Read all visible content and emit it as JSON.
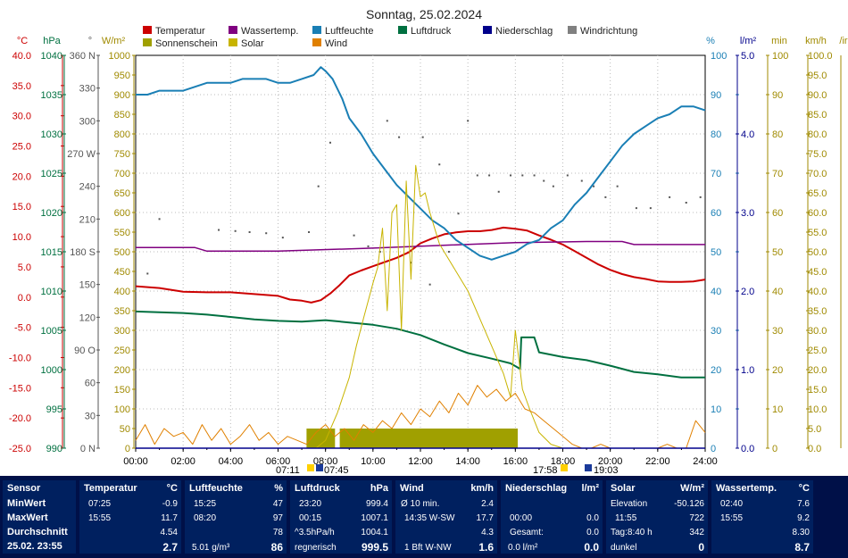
{
  "title": "Sonntag, 25.02.2024",
  "legend": [
    {
      "label": "Temperatur",
      "color": "#cc0000"
    },
    {
      "label": "Wassertemp.",
      "color": "#800080"
    },
    {
      "label": "Luftfeuchte",
      "color": "#1a7fb5"
    },
    {
      "label": "Luftdruck",
      "color": "#007040"
    },
    {
      "label": "Niederschlag",
      "color": "#00008b"
    },
    {
      "label": "Windrichtung",
      "color": "#808080"
    },
    {
      "label": "Sonnenschein",
      "color": "#a0a000"
    },
    {
      "label": "Solar",
      "color": "#c8b400"
    },
    {
      "label": "Wind",
      "color": "#e08000"
    }
  ],
  "axis_headers": {
    "temp": "°C",
    "press": "hPa",
    "dir": "°",
    "solar": "W/m²",
    "hum": "%",
    "rain": "l/m²",
    "sun": "min",
    "wind": "km/h",
    "extra": "/ir"
  },
  "sun_markers": {
    "sunrise": "07:11",
    "sunrise2": "07:45",
    "sunset": "17:58",
    "sunset2": "19:03"
  },
  "chart_data": {
    "type": "line",
    "x_label_ticks": [
      "00:00",
      "02:00",
      "04:00",
      "06:00",
      "08:00",
      "10:00",
      "12:00",
      "14:00",
      "16:00",
      "18:00",
      "20:00",
      "22:00",
      "24:00"
    ],
    "xlim": [
      0,
      24
    ],
    "axes": {
      "temp": {
        "ticks": [
          "40.0",
          "35.0",
          "30.0",
          "25.0",
          "20.0",
          "15.0",
          "10.0",
          "5.0",
          "0.0",
          "-5.0",
          "-10.0",
          "-15.0",
          "-20.0",
          "-25.0"
        ],
        "range": [
          -25,
          40
        ]
      },
      "press": {
        "ticks": [
          "1040",
          "1035",
          "1030",
          "1025",
          "1020",
          "1015",
          "1010",
          "1005",
          "1000",
          "995",
          "990"
        ],
        "range": [
          990,
          1040
        ]
      },
      "dir": {
        "ticks": [
          "360 N",
          "330",
          "300",
          "270 W",
          "240",
          "210",
          "180 S",
          "150",
          "120",
          "90 O",
          "60",
          "30",
          "0 N"
        ],
        "range": [
          0,
          360
        ]
      },
      "solar": {
        "ticks": [
          "1000",
          "950",
          "900",
          "850",
          "800",
          "750",
          "700",
          "650",
          "600",
          "550",
          "500",
          "450",
          "400",
          "350",
          "300",
          "250",
          "200",
          "150",
          "100",
          "50",
          "0"
        ],
        "range": [
          0,
          1000
        ]
      },
      "hum": {
        "ticks": [
          "100",
          "90",
          "80",
          "70",
          "60",
          "50",
          "40",
          "30",
          "20",
          "10",
          "0"
        ],
        "range": [
          0,
          100
        ]
      },
      "rain": {
        "ticks": [
          "5.0",
          "4.0",
          "3.0",
          "2.0",
          "1.0",
          "0.0"
        ],
        "range": [
          0,
          5
        ]
      },
      "sun": {
        "ticks": [
          "100",
          "90",
          "80",
          "70",
          "60",
          "50",
          "40",
          "30",
          "20",
          "10",
          "0"
        ],
        "range": [
          0,
          100
        ]
      },
      "wind": {
        "ticks": [
          "100.0",
          "95.0",
          "90.0",
          "85.0",
          "80.0",
          "75.0",
          "70.0",
          "65.0",
          "60.0",
          "55.0",
          "50.0",
          "45.0",
          "40.0",
          "35.0",
          "30.0",
          "25.0",
          "20.0",
          "15.0",
          "10.0",
          "5.0",
          "0.0"
        ],
        "range": [
          0,
          100
        ]
      }
    },
    "series": [
      {
        "name": "Temperatur",
        "axis": "temp",
        "x": [
          0,
          1,
          2,
          3,
          4,
          5,
          6,
          6.5,
          7,
          7.4,
          7.8,
          8.2,
          8.6,
          9,
          9.5,
          10,
          10.5,
          11,
          11.5,
          12,
          12.5,
          13,
          13.5,
          14,
          14.5,
          15,
          15.5,
          16,
          16.5,
          17,
          17.5,
          18,
          18.5,
          19,
          19.5,
          20,
          20.5,
          21,
          21.5,
          22,
          22.5,
          23,
          23.5,
          24
        ],
        "y": [
          1.8,
          1.5,
          0.9,
          0.8,
          0.8,
          0.5,
          0.2,
          -0.4,
          -0.6,
          -0.9,
          -0.5,
          0.6,
          2.0,
          3.6,
          4.4,
          5.1,
          5.8,
          6.5,
          7.4,
          8.9,
          9.7,
          10.4,
          10.7,
          10.9,
          10.9,
          11.1,
          11.5,
          11.3,
          11.0,
          10.2,
          9.5,
          8.7,
          7.6,
          6.5,
          5.4,
          4.5,
          3.8,
          3.3,
          3.0,
          2.6,
          2.5,
          2.5,
          2.6,
          2.9
        ]
      },
      {
        "name": "Wassertemp.",
        "axis": "temp",
        "x": [
          0,
          2.5,
          3.0,
          6.0,
          10.0,
          12.5,
          16.0,
          19.0,
          20.5,
          21.0,
          24.0
        ],
        "y": [
          8.2,
          8.2,
          7.6,
          7.6,
          8.1,
          8.5,
          9.0,
          9.2,
          9.2,
          8.7,
          8.7
        ]
      },
      {
        "name": "Luftfeuchte",
        "axis": "hum",
        "x": [
          0,
          0.5,
          1,
          1.5,
          2,
          2.5,
          3,
          3.5,
          4,
          4.5,
          5,
          5.5,
          6,
          6.5,
          7,
          7.5,
          7.8,
          8,
          8.3,
          8.7,
          9,
          9.5,
          10,
          10.5,
          11,
          11.5,
          12,
          12.5,
          13,
          13.5,
          14,
          14.5,
          15,
          15.5,
          16,
          16.5,
          17,
          17.5,
          18,
          18.5,
          19,
          19.5,
          20,
          20.5,
          21,
          21.5,
          22,
          22.5,
          23,
          23.5,
          24
        ],
        "y": [
          90,
          90,
          91,
          91,
          91,
          92,
          93,
          93,
          93,
          94,
          94,
          94,
          93,
          93,
          94,
          95,
          97,
          96,
          94,
          89,
          84,
          80,
          75,
          71,
          67,
          64,
          61,
          58,
          56,
          53,
          51,
          49,
          48,
          49,
          50,
          52,
          53,
          56,
          58,
          62,
          65,
          69,
          73,
          77,
          80,
          82,
          84,
          85,
          87,
          87,
          86
        ]
      },
      {
        "name": "Luftdruck",
        "axis": "press",
        "x": [
          0,
          1,
          2,
          3,
          4,
          5,
          6,
          7,
          8,
          9,
          10,
          11,
          12,
          13,
          14,
          15,
          15.8,
          16.2,
          16.25,
          16.8,
          17,
          18,
          19,
          20,
          21,
          22,
          23,
          24
        ],
        "y": [
          1007.4,
          1007.3,
          1007.2,
          1007.0,
          1006.7,
          1006.4,
          1006.2,
          1006.1,
          1006.3,
          1006.0,
          1005.7,
          1005.2,
          1004.4,
          1003.2,
          1002.1,
          1001.4,
          1000.8,
          1000.1,
          1004.1,
          1004.1,
          1002.2,
          1001.6,
          1001.2,
          1000.5,
          999.7,
          999.4,
          999.0,
          999.0
        ]
      },
      {
        "name": "Solar",
        "axis": "solar",
        "x": [
          7.6,
          8,
          8.5,
          9,
          9.3,
          9.6,
          10,
          10.2,
          10.4,
          10.6,
          10.8,
          11.0,
          11.2,
          11.4,
          11.6,
          11.8,
          12.0,
          12.2,
          12.4,
          12.6,
          12.8,
          13,
          13.5,
          14,
          14.5,
          15,
          15.5,
          15.8,
          16,
          16.3,
          16.6,
          17,
          17.5,
          18
        ],
        "y": [
          0,
          20,
          90,
          180,
          260,
          330,
          420,
          460,
          560,
          350,
          600,
          620,
          300,
          680,
          430,
          720,
          640,
          650,
          600,
          560,
          520,
          500,
          450,
          400,
          330,
          260,
          190,
          130,
          300,
          150,
          100,
          40,
          10,
          0
        ]
      },
      {
        "name": "Wind",
        "axis": "wind",
        "x": [
          0,
          0.4,
          0.8,
          1.2,
          1.6,
          2,
          2.4,
          2.8,
          3.2,
          3.6,
          4,
          4.4,
          4.8,
          5.2,
          5.6,
          6,
          6.4,
          6.8,
          7.2,
          7.6,
          8,
          8.4,
          8.8,
          9.2,
          9.6,
          10,
          10.4,
          10.8,
          11.2,
          11.6,
          12,
          12.4,
          12.8,
          13.2,
          13.6,
          14,
          14.4,
          14.8,
          15.2,
          15.6,
          16,
          16.4,
          16.8,
          17.2,
          17.6,
          18,
          18.4,
          18.8,
          19.2,
          19.6,
          20,
          20.4,
          20.8,
          21.2,
          21.6,
          22,
          22.4,
          22.8,
          23.2,
          23.6,
          24
        ],
        "y": [
          2,
          6,
          1,
          5,
          3,
          4,
          1,
          6,
          2,
          5,
          1,
          3,
          6,
          2,
          4,
          1,
          3,
          2,
          1,
          4,
          6,
          3,
          5,
          2,
          6,
          4,
          7,
          5,
          9,
          6,
          10,
          8,
          12,
          9,
          14,
          11,
          16,
          13,
          15,
          12,
          14,
          10,
          9,
          7,
          5,
          3,
          1,
          0,
          0,
          1,
          0,
          0,
          0,
          0,
          0,
          0,
          1,
          0,
          0,
          7,
          4
        ]
      },
      {
        "name": "Niederschlag",
        "axis": "rain",
        "x": [
          0,
          24
        ],
        "y": [
          0,
          0
        ]
      }
    ],
    "windrichtung": {
      "x": [
        0.5,
        1,
        3.5,
        4.2,
        4.8,
        5.5,
        6.2,
        7.3,
        7.7,
        8.2,
        9.2,
        9.8,
        10.3,
        10.6,
        11.1,
        11.6,
        12.1,
        12.4,
        12.8,
        13.2,
        13.6,
        14.0,
        14.4,
        14.9,
        15.3,
        15.8,
        16.3,
        16.8,
        17.2,
        17.6,
        18.2,
        18.8,
        19.3,
        19.8,
        20.3,
        21.1,
        21.7,
        22.5,
        23.2,
        23.8
      ],
      "y": [
        160,
        210,
        200,
        199,
        198,
        197,
        193,
        198,
        240,
        280,
        195,
        185,
        180,
        300,
        285,
        170,
        285,
        150,
        260,
        180,
        215,
        300,
        250,
        250,
        235,
        250,
        250,
        250,
        245,
        240,
        250,
        245,
        240,
        230,
        240,
        220,
        220,
        230,
        225,
        230
      ]
    },
    "sonnenschein": {
      "intervals": [
        [
          7.2,
          8.4
        ],
        [
          8.6,
          16.1
        ]
      ],
      "value_min": 10
    }
  },
  "stats": {
    "sensor": {
      "h1": "Sensor",
      "r1": "MinWert",
      "r2": "MaxWert",
      "r3": "Durchschnitt",
      "r4": "25.02. 23:55"
    },
    "temperatur": {
      "h1": "Temperatur",
      "unit": "°C",
      "r1t": "07:25",
      "r1v": "-0.9",
      "r2t": "15:55",
      "r2v": "11.7",
      "r3v": "4.54",
      "r4v": "2.7"
    },
    "luftfeuchte": {
      "h1": "Luftfeuchte",
      "unit": "%",
      "r1t": "15:25",
      "r1v": "47",
      "r2t": "08:20",
      "r2v": "97",
      "r3v": "78",
      "r4t": "5.01 g/m³",
      "r4v": "86"
    },
    "luftdruck": {
      "h1": "Luftdruck",
      "unit": "hPa",
      "r1t": "23:20",
      "r1v": "999.4",
      "r2t": "00:15",
      "r2v": "1007.1",
      "r3t": "^3.5hPa/h",
      "r3v": "1004.1",
      "r4t": "regnerisch",
      "r4v": "999.5"
    },
    "wind": {
      "h1": "Wind",
      "unit": "km/h",
      "r1t": "Ø 10 min.",
      "r1v": "2.4",
      "r2t": "14:35  W-SW",
      "r2v": "17.7",
      "r3v": "4.3",
      "r4t": "1 Bft W-NW",
      "r4v": "1.6"
    },
    "niederschlag": {
      "h1": "Niederschlag",
      "unit": "l/m²",
      "r2t": "00:00",
      "r2v": "0.0",
      "r3t": "Gesamt:",
      "r3v": "0.0",
      "r4t": "0.0 l/m²",
      "r4v": "0.0"
    },
    "solar": {
      "h1": "Solar",
      "unit": "W/m²",
      "r1t": "Elevation",
      "r1v": "-50.126",
      "r2t": "11:55",
      "r2v": "722",
      "r3t": "Tag:8:40 h",
      "r3v": "342",
      "r4t": "dunkel",
      "r4v": "0"
    },
    "wassertemp": {
      "h1": "Wassertemp.",
      "unit": "°C",
      "r1t": "02:40",
      "r1v": "7.6",
      "r2t": "15:55",
      "r2v": "9.2",
      "r3v": "8.30",
      "r4v": "8.7"
    }
  }
}
